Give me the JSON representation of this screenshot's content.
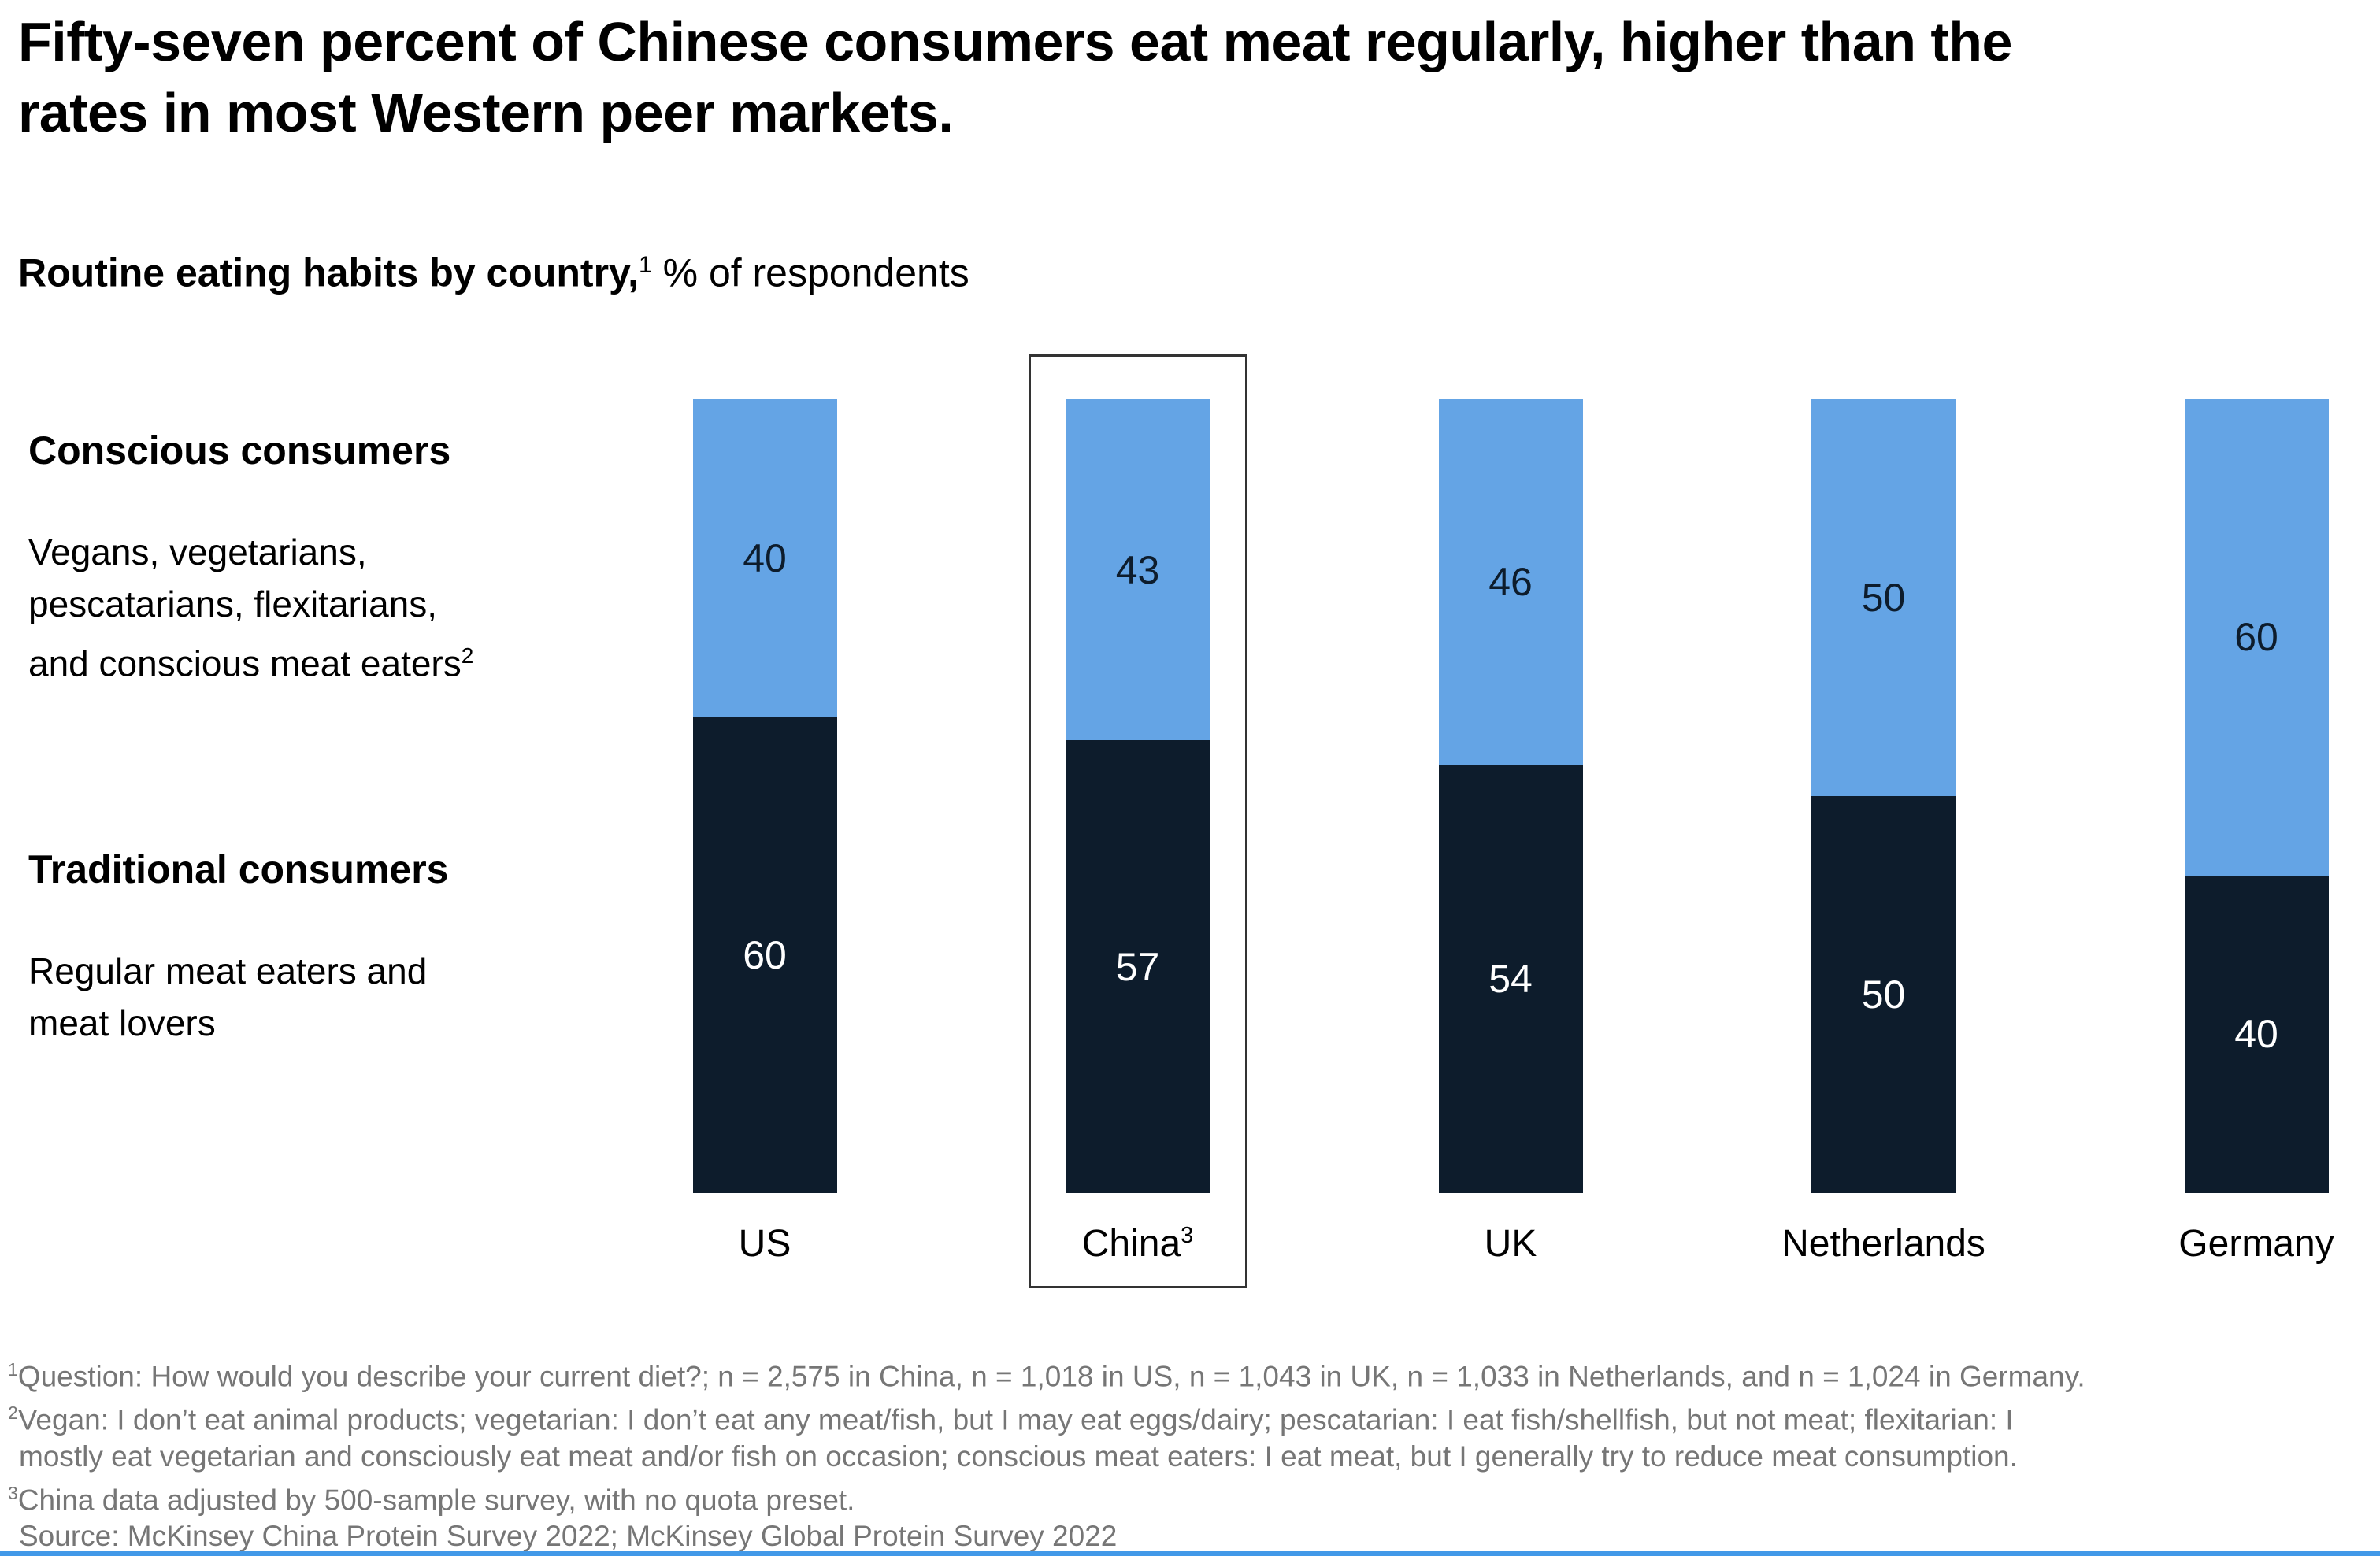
{
  "title": {
    "line1": "Fifty-seven percent of Chinese consumers eat meat regularly, higher than the",
    "line2": "rates in most Western peer markets."
  },
  "subtitle": {
    "bold": "Routine eating habits by country,",
    "sup": "1",
    "rest": " % of respondents"
  },
  "legend": {
    "conscious": {
      "heading": "Conscious consumers",
      "lines": [
        "Vegans, vegetarians,",
        "pescatarians, flexitarians,",
        "and conscious meat eaters"
      ],
      "last_line_sup": "2"
    },
    "traditional": {
      "heading": "Traditional consumers",
      "lines": [
        "Regular meat eaters and",
        "meat lovers"
      ],
      "last_line_sup": ""
    }
  },
  "chart_data": {
    "type": "bar",
    "stacked": true,
    "title": "Routine eating habits by country, % of respondents",
    "categories": [
      "US",
      "China",
      "UK",
      "Netherlands",
      "Germany"
    ],
    "category_sups": [
      "",
      "3",
      "",
      "",
      ""
    ],
    "series": [
      {
        "name": "Conscious consumers",
        "color": "#64a4e5",
        "values": [
          40,
          43,
          46,
          50,
          60
        ]
      },
      {
        "name": "Traditional consumers",
        "color": "#0d1c2c",
        "values": [
          60,
          57,
          54,
          50,
          40
        ]
      }
    ],
    "value_labels": true,
    "highlighted_category": "China",
    "ylim": [
      0,
      100
    ],
    "grid": false,
    "legend_position": "left"
  },
  "footnotes": [
    {
      "sup": "1",
      "indent": false,
      "text": "Question: How would you describe your current diet?; n = 2,575 in China, n = 1,018 in US, n = 1,043 in UK, n = 1,033 in Netherlands, and n = 1,024 in Germany."
    },
    {
      "sup": "2",
      "indent": false,
      "text": "Vegan: I don’t eat animal products; vegetarian: I don’t eat any meat/fish, but I may eat eggs/dairy; pescatarian: I eat fish/shellfish, but not meat; flexitarian: I"
    },
    {
      "sup": "",
      "indent": true,
      "text": "mostly eat vegetarian and consciously eat meat and/or fish on occasion; conscious meat eaters: I eat meat, but I generally try to reduce meat consumption."
    },
    {
      "sup": "3",
      "indent": false,
      "text": "China data adjusted by 500-sample survey, with no quota preset."
    },
    {
      "sup": "",
      "indent": true,
      "text": "Source: McKinsey China Protein Survey 2022; McKinsey Global Protein Survey 2022"
    }
  ],
  "colors": {
    "conscious_blue": "#64a4e5",
    "traditional_navy": "#0d1c2c",
    "value_on_blue": "#0d1c2c",
    "value_on_navy": "#ffffff",
    "footnote_gray": "#767676",
    "highlight_border": "#333333",
    "bottom_rule_blue": "#4299e8"
  }
}
